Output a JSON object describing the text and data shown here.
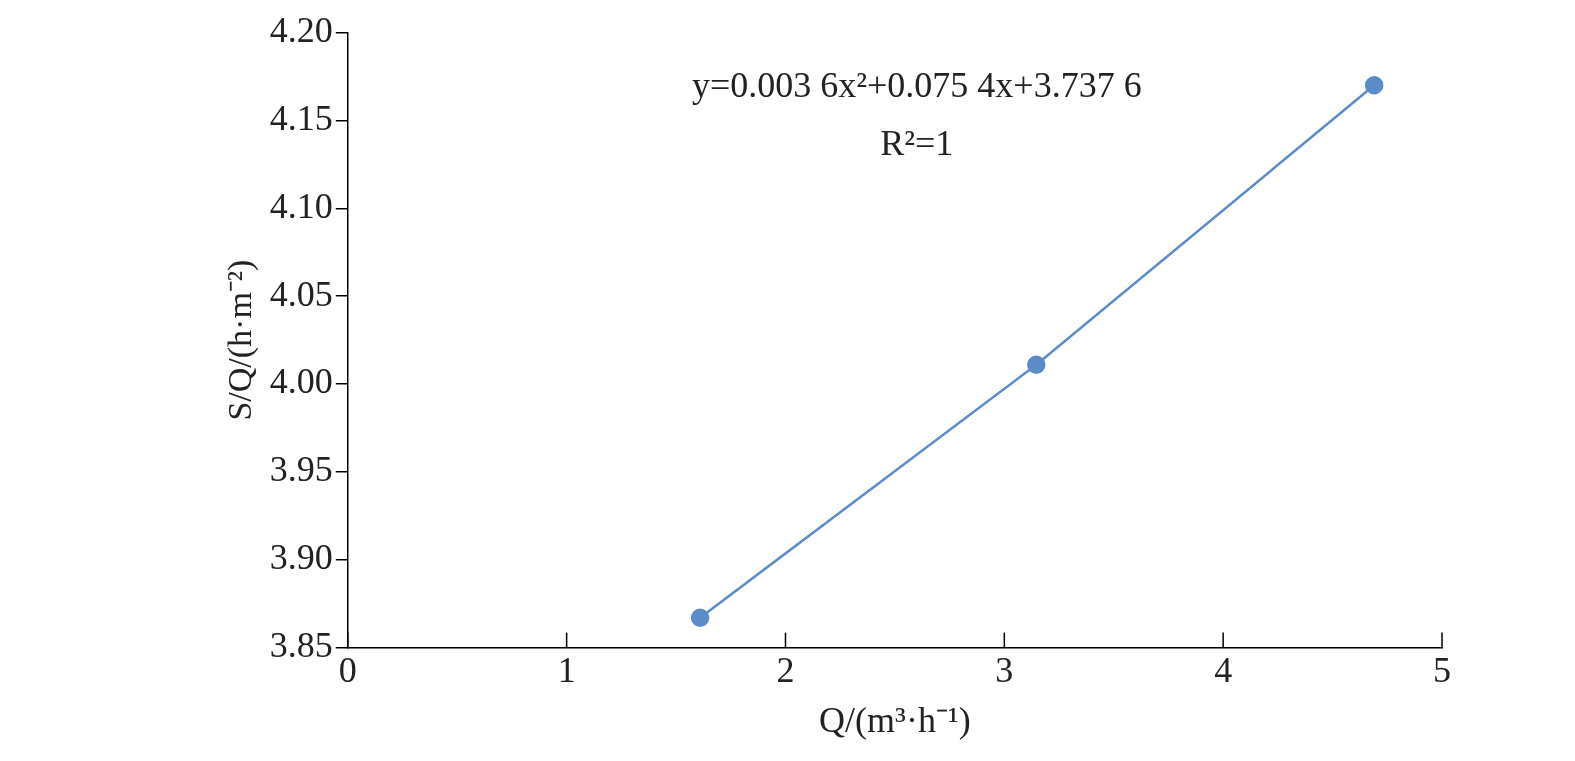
{
  "chart_data": {
    "type": "line",
    "xlabel": "Q/(m³·h⁻¹)",
    "ylabel": "S/Q/(h·m⁻²)",
    "annotations": [
      "y=0.003 6x²+0.075 4x+3.737 6",
      "R²=1"
    ],
    "x": [
      1.61,
      3.146,
      4.69
    ],
    "series": [
      {
        "color": "#5b8bc9",
        "values": [
          3.867,
          4.011,
          4.17
        ]
      }
    ],
    "xlim": [
      0,
      5
    ],
    "xticks": [
      0,
      1,
      2,
      3,
      4,
      5
    ],
    "ylim": [
      3.85,
      4.2
    ],
    "yticks": [
      3.85,
      {
        "value": 3.9,
        "label": "3.90"
      },
      3.95,
      {
        "value": 4.0,
        "label": "4.00"
      },
      4.05,
      {
        "value": 4.1,
        "label": "4.10"
      },
      4.15,
      {
        "value": 4.2,
        "label": "4.20"
      }
    ],
    "grid": false,
    "legend": false,
    "marker": "circle",
    "line_style": "solid"
  }
}
